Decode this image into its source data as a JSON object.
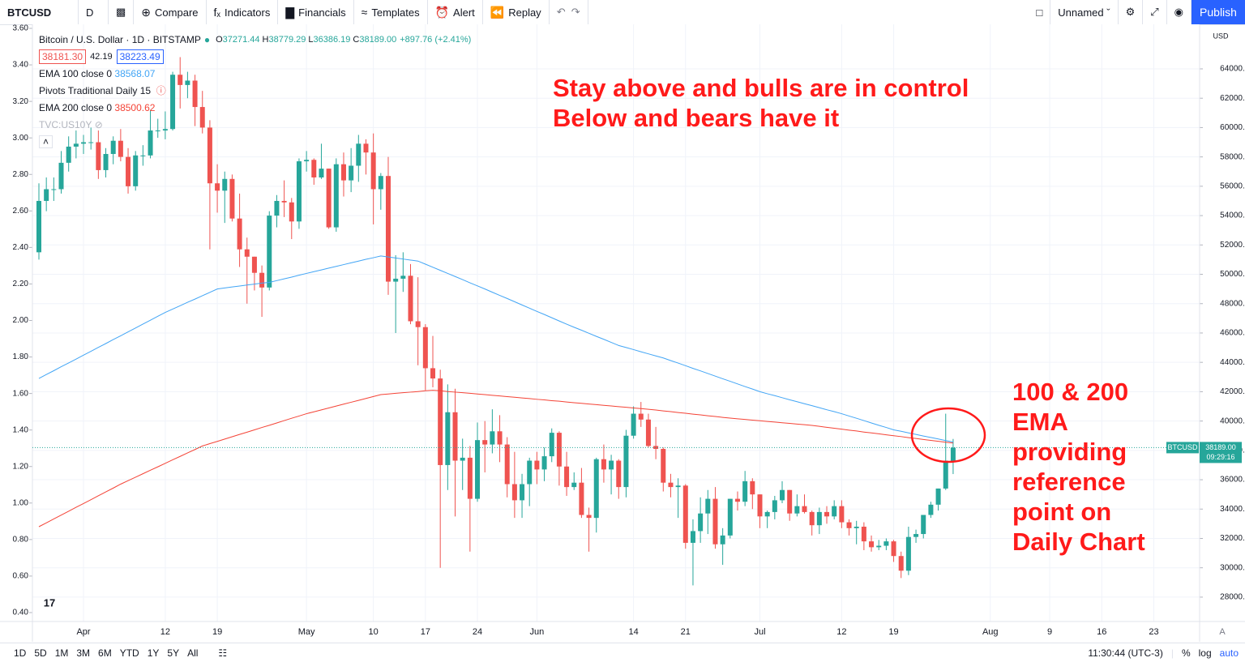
{
  "toolbar": {
    "symbol": "BTCUSD",
    "interval": "D",
    "buttons": [
      "Compare",
      "Indicators",
      "Financials",
      "Templates",
      "Alert",
      "Replay"
    ],
    "layout_name": "Unnamed",
    "publish": "Publish"
  },
  "legend": {
    "title": "Bitcoin / U.S. Dollar · 1D · BITSTAMP",
    "ohlc": [
      {
        "key": "O",
        "value": "37271.44"
      },
      {
        "key": "H",
        "value": "38779.29"
      },
      {
        "key": "L",
        "value": "36386.19"
      },
      {
        "key": "C",
        "value": "38189.00"
      }
    ],
    "change": "+897.76 (+2.41%)",
    "bid": "38181.30",
    "spread": "42.19",
    "ask": "38223.49",
    "pivots": "Pivots Traditional Daily 15",
    "us10y": "TVC:US10Y"
  },
  "annotations": {
    "top": [
      "Stay above and bulls are in control",
      "Below and bears have it"
    ],
    "side": [
      "100 & 200",
      "EMA",
      "providing",
      "reference",
      "point on",
      "Daily Chart"
    ]
  },
  "price_tag": {
    "symbol": "BTCUSD",
    "price": "38189.00",
    "countdown": "09:29:16"
  },
  "currency": "USD",
  "bottom_bar": {
    "ranges": [
      "1D",
      "5D",
      "1M",
      "3M",
      "6M",
      "YTD",
      "1Y",
      "5Y",
      "All"
    ],
    "time": "11:30:44 (UTC-3)",
    "percent": "%",
    "log": "log",
    "auto": "auto"
  },
  "chart_data": {
    "type": "candlestick",
    "up_color": "#26a69a",
    "down_color": "#ef5350",
    "candles": [
      [
        51500,
        56200,
        51000,
        55000
      ],
      [
        55000,
        56600,
        54300,
        55800
      ],
      [
        55800,
        56600,
        55000,
        55800
      ],
      [
        55800,
        58400,
        55500,
        57600
      ],
      [
        57600,
        59400,
        57000,
        58700
      ],
      [
        58700,
        59800,
        57900,
        58900
      ],
      [
        58900,
        59500,
        58200,
        59000
      ],
      [
        59000,
        60000,
        58500,
        59000
      ],
      [
        59000,
        59800,
        56500,
        57100
      ],
      [
        57100,
        58600,
        56600,
        58200
      ],
      [
        58200,
        59400,
        57500,
        59100
      ],
      [
        59100,
        59900,
        57700,
        58000
      ],
      [
        58000,
        58600,
        55500,
        56000
      ],
      [
        56000,
        58400,
        55700,
        58100
      ],
      [
        58100,
        58800,
        57400,
        58100
      ],
      [
        58100,
        61200,
        57900,
        59800
      ],
      [
        59800,
        60600,
        59300,
        59800
      ],
      [
        59800,
        61100,
        59200,
        59900
      ],
      [
        59900,
        63800,
        59800,
        63600
      ],
      [
        63600,
        64800,
        61300,
        62900
      ],
      [
        62900,
        63800,
        62000,
        63200
      ],
      [
        63200,
        63600,
        60100,
        61400
      ],
      [
        61400,
        62500,
        59600,
        60000
      ],
      [
        60000,
        60500,
        51700,
        56200
      ],
      [
        56200,
        57500,
        54200,
        55700
      ],
      [
        55700,
        57000,
        53500,
        56500
      ],
      [
        56500,
        56800,
        53600,
        53800
      ],
      [
        53800,
        55500,
        50500,
        51700
      ],
      [
        51700,
        52500,
        48000,
        51200
      ],
      [
        51200,
        51200,
        48900,
        50100
      ],
      [
        50100,
        50600,
        47100,
        49100
      ],
      [
        49100,
        54300,
        48900,
        54000
      ],
      [
        54000,
        55400,
        53200,
        55000
      ],
      [
        55000,
        56400,
        53900,
        54900
      ],
      [
        54900,
        55200,
        52400,
        53600
      ],
      [
        53600,
        57900,
        53100,
        57700
      ],
      [
        57700,
        58400,
        57000,
        57800
      ],
      [
        57800,
        57900,
        56100,
        56600
      ],
      [
        56600,
        58900,
        56500,
        57200
      ],
      [
        57200,
        57200,
        53100,
        53200
      ],
      [
        53200,
        57900,
        52900,
        57500
      ],
      [
        57500,
        58300,
        55300,
        56400
      ],
      [
        56400,
        58600,
        55600,
        57400
      ],
      [
        57400,
        59500,
        56300,
        58900
      ],
      [
        58900,
        59200,
        56800,
        58300
      ],
      [
        58300,
        59600,
        53400,
        55800
      ],
      [
        55800,
        56900,
        54400,
        56700
      ],
      [
        56700,
        58000,
        48600,
        49500
      ],
      [
        49500,
        51300,
        46000,
        49700
      ],
      [
        49700,
        51500,
        48800,
        49900
      ],
      [
        49900,
        50700,
        46600,
        46800
      ],
      [
        46800,
        49800,
        43800,
        46400
      ],
      [
        46400,
        46600,
        42100,
        43600
      ],
      [
        43600,
        45800,
        42300,
        42900
      ],
      [
        42900,
        43500,
        30000,
        37000
      ],
      [
        37000,
        42500,
        35300,
        40600
      ],
      [
        40600,
        42200,
        33500,
        37300
      ],
      [
        37300,
        38800,
        35300,
        37500
      ],
      [
        37500,
        38300,
        31100,
        34700
      ],
      [
        34700,
        39900,
        34500,
        38700
      ],
      [
        38700,
        40000,
        36500,
        38400
      ],
      [
        38400,
        40800,
        37800,
        39300
      ],
      [
        39300,
        40400,
        37200,
        38400
      ],
      [
        38400,
        38900,
        34800,
        35700
      ],
      [
        35700,
        37900,
        33400,
        34600
      ],
      [
        34600,
        36400,
        33400,
        35700
      ],
      [
        35700,
        37500,
        34200,
        37300
      ],
      [
        37300,
        37900,
        35700,
        36700
      ],
      [
        36700,
        38200,
        35900,
        37600
      ],
      [
        37600,
        39500,
        37200,
        39200
      ],
      [
        39200,
        39300,
        35600,
        36900
      ],
      [
        36900,
        37900,
        34900,
        35500
      ],
      [
        35500,
        36500,
        35300,
        35800
      ],
      [
        35800,
        36800,
        33400,
        33600
      ],
      [
        33600,
        34100,
        31100,
        33400
      ],
      [
        33400,
        37500,
        32400,
        37400
      ],
      [
        37400,
        38400,
        35800,
        36700
      ],
      [
        36700,
        37700,
        35000,
        37300
      ],
      [
        37300,
        37400,
        34700,
        35500
      ],
      [
        35500,
        39400,
        34800,
        39000
      ],
      [
        39000,
        41000,
        38800,
        40500
      ],
      [
        40500,
        41300,
        39600,
        40100
      ],
      [
        40100,
        40500,
        38200,
        38300
      ],
      [
        38300,
        39600,
        37400,
        38100
      ],
      [
        38100,
        38200,
        35200,
        35800
      ],
      [
        35800,
        36400,
        34800,
        35500
      ],
      [
        35500,
        36100,
        33400,
        35600
      ],
      [
        35600,
        35700,
        31300,
        31700
      ],
      [
        31700,
        33300,
        28800,
        32500
      ],
      [
        32500,
        34800,
        31700,
        33700
      ],
      [
        33700,
        35300,
        32300,
        34700
      ],
      [
        34700,
        35500,
        31300,
        31600
      ],
      [
        31600,
        32700,
        30200,
        32200
      ],
      [
        32200,
        34700,
        32000,
        34700
      ],
      [
        34700,
        35200,
        33900,
        34500
      ],
      [
        34500,
        36600,
        34200,
        35900
      ],
      [
        35900,
        36100,
        34000,
        35000
      ],
      [
        35000,
        35000,
        32700,
        33500
      ],
      [
        33500,
        33900,
        32700,
        33800
      ],
      [
        33800,
        34900,
        33300,
        34600
      ],
      [
        34600,
        35900,
        34400,
        35300
      ],
      [
        35300,
        35300,
        33200,
        33700
      ],
      [
        33700,
        35000,
        33500,
        34200
      ],
      [
        34200,
        35000,
        33700,
        33800
      ],
      [
        33800,
        33900,
        32200,
        32900
      ],
      [
        32900,
        34100,
        32300,
        33800
      ],
      [
        33800,
        34200,
        33000,
        33500
      ],
      [
        33500,
        34600,
        33300,
        34200
      ],
      [
        34200,
        34600,
        32700,
        33100
      ],
      [
        33100,
        33300,
        32200,
        32700
      ],
      [
        32700,
        33200,
        31600,
        32800
      ],
      [
        32800,
        33100,
        31200,
        31800
      ],
      [
        31800,
        32200,
        31100,
        31400
      ],
      [
        31400,
        31900,
        31200,
        31500
      ],
      [
        31500,
        32000,
        31200,
        31800
      ],
      [
        31800,
        31900,
        30400,
        30800
      ],
      [
        30800,
        31100,
        29300,
        29800
      ],
      [
        29800,
        32800,
        29500,
        32100
      ],
      [
        32100,
        32600,
        31700,
        32300
      ],
      [
        32300,
        33600,
        32000,
        33600
      ],
      [
        33600,
        34500,
        33400,
        34300
      ],
      [
        34300,
        35400,
        33900,
        35400
      ],
      [
        35400,
        40500,
        35300,
        37300
      ],
      [
        37271.44,
        38779.29,
        36386.19,
        38189
      ]
    ],
    "series": [
      {
        "name": "EMA 100 close 0",
        "last": "38568.07",
        "color": "#42a5f5",
        "values": [
          42900,
          43170,
          43430,
          43700,
          43960,
          44220,
          44490,
          44750,
          45020,
          45280,
          45550,
          45810,
          46080,
          46340,
          46610,
          46870,
          47140,
          47400,
          47630,
          47860,
          48090,
          48310,
          48540,
          48770,
          49000,
          49070,
          49140,
          49200,
          49270,
          49330,
          49400,
          49450,
          49570,
          49690,
          49810,
          49940,
          50060,
          50180,
          50300,
          50420,
          50540,
          50660,
          50780,
          50900,
          51020,
          51130,
          51250,
          51180,
          51110,
          51040,
          50970,
          50900,
          50690,
          50480,
          50270,
          50060,
          49850,
          49640,
          49420,
          49210,
          49000,
          48780,
          48560,
          48350,
          48130,
          47910,
          47690,
          47470,
          47260,
          47040,
          46820,
          46600,
          46390,
          46190,
          45980,
          45770,
          45570,
          45360,
          45150,
          45010,
          44870,
          44720,
          44580,
          44440,
          44300,
          44120,
          43950,
          43770,
          43590,
          43420,
          43240,
          43060,
          42880,
          42710,
          42530,
          42350,
          42180,
          42000,
          41860,
          41730,
          41590,
          41450,
          41320,
          41180,
          41050,
          40910,
          40770,
          40640,
          40500,
          40340,
          40190,
          40030,
          39870,
          39710,
          39560,
          39400,
          39300,
          39190,
          39090,
          38980,
          38880,
          38780,
          38670,
          38570
        ]
      },
      {
        "name": "EMA 200 close 0",
        "last": "38500.62",
        "color": "#f44336",
        "values": [
          32800,
          33060,
          33330,
          33590,
          33850,
          34120,
          34380,
          34640,
          34910,
          35170,
          35430,
          35700,
          35940,
          36170,
          36410,
          36650,
          36880,
          37120,
          37360,
          37590,
          37830,
          38060,
          38300,
          38460,
          38610,
          38770,
          38930,
          39090,
          39240,
          39400,
          39560,
          39710,
          39870,
          40030,
          40190,
          40340,
          40500,
          40630,
          40760,
          40890,
          41020,
          41150,
          41280,
          41410,
          41540,
          41670,
          41800,
          41840,
          41890,
          41930,
          41970,
          42010,
          42060,
          42100,
          42060,
          42010,
          41970,
          41930,
          41890,
          41840,
          41800,
          41750,
          41710,
          41660,
          41620,
          41570,
          41530,
          41480,
          41440,
          41390,
          41350,
          41300,
          41250,
          41210,
          41160,
          41120,
          41070,
          41030,
          40980,
          40940,
          40890,
          40850,
          40800,
          40750,
          40690,
          40640,
          40580,
          40530,
          40470,
          40420,
          40360,
          40310,
          40250,
          40200,
          40150,
          40110,
          40060,
          40020,
          39970,
          39930,
          39880,
          39840,
          39790,
          39750,
          39700,
          39640,
          39570,
          39510,
          39450,
          39380,
          39320,
          39250,
          39190,
          39130,
          39060,
          39000,
          38940,
          38870,
          38810,
          38740,
          38680,
          38620,
          38560,
          38500
        ]
      }
    ],
    "ylim": [
      26450,
      66760
    ],
    "yticks": [
      {
        "value": 28000,
        "label": "28000.00"
      },
      {
        "value": 30000,
        "label": "30000.00"
      },
      {
        "value": 32000,
        "label": "32000.00"
      },
      {
        "value": 34000,
        "label": "34000.00"
      },
      {
        "value": 36000,
        "label": "36000.00"
      },
      {
        "value": 38000,
        "label": "38000.00"
      },
      {
        "value": 40000,
        "label": "40000.00"
      },
      {
        "value": 42000,
        "label": "42000.00"
      },
      {
        "value": 44000,
        "label": "44000.00"
      },
      {
        "value": 46000,
        "label": "46000.00"
      },
      {
        "value": 48000,
        "label": "48000.00"
      },
      {
        "value": 50000,
        "label": "50000.00"
      },
      {
        "value": 52000,
        "label": "52000.00"
      },
      {
        "value": 54000,
        "label": "54000.00"
      },
      {
        "value": 56000,
        "label": "56000.00"
      },
      {
        "value": 58000,
        "label": "58000.00"
      },
      {
        "value": 60000,
        "label": "60000.00"
      },
      {
        "value": 62000,
        "label": "62000.00"
      },
      {
        "value": 64000,
        "label": "64000.00"
      }
    ],
    "y2lim": [
      0.36,
      3.6
    ],
    "y2ticks": [
      {
        "value": 0.4,
        "label": "0.40"
      },
      {
        "value": 0.6,
        "label": "0.60"
      },
      {
        "value": 0.8,
        "label": "0.80"
      },
      {
        "value": 1,
        "label": "1.00"
      },
      {
        "value": 1.2,
        "label": "1.20"
      },
      {
        "value": 1.4,
        "label": "1.40"
      },
      {
        "value": 1.6,
        "label": "1.60"
      },
      {
        "value": 1.8,
        "label": "1.80"
      },
      {
        "value": 2,
        "label": "2.00"
      },
      {
        "value": 2.2,
        "label": "2.20"
      },
      {
        "value": 2.4,
        "label": "2.40"
      },
      {
        "value": 2.6,
        "label": "2.60"
      },
      {
        "value": 2.8,
        "label": "2.80"
      },
      {
        "value": 3,
        "label": "3.00"
      },
      {
        "value": 3.2,
        "label": "3.20"
      },
      {
        "value": 3.4,
        "label": "3.40"
      },
      {
        "value": 3.6,
        "label": "3.60"
      }
    ],
    "xtick_labels": [
      "Apr",
      "12",
      "19",
      "May",
      "10",
      "17",
      "24",
      "Jun",
      "14",
      "21",
      "Jul",
      "12",
      "19",
      "Aug",
      "9",
      "16",
      "23"
    ]
  }
}
